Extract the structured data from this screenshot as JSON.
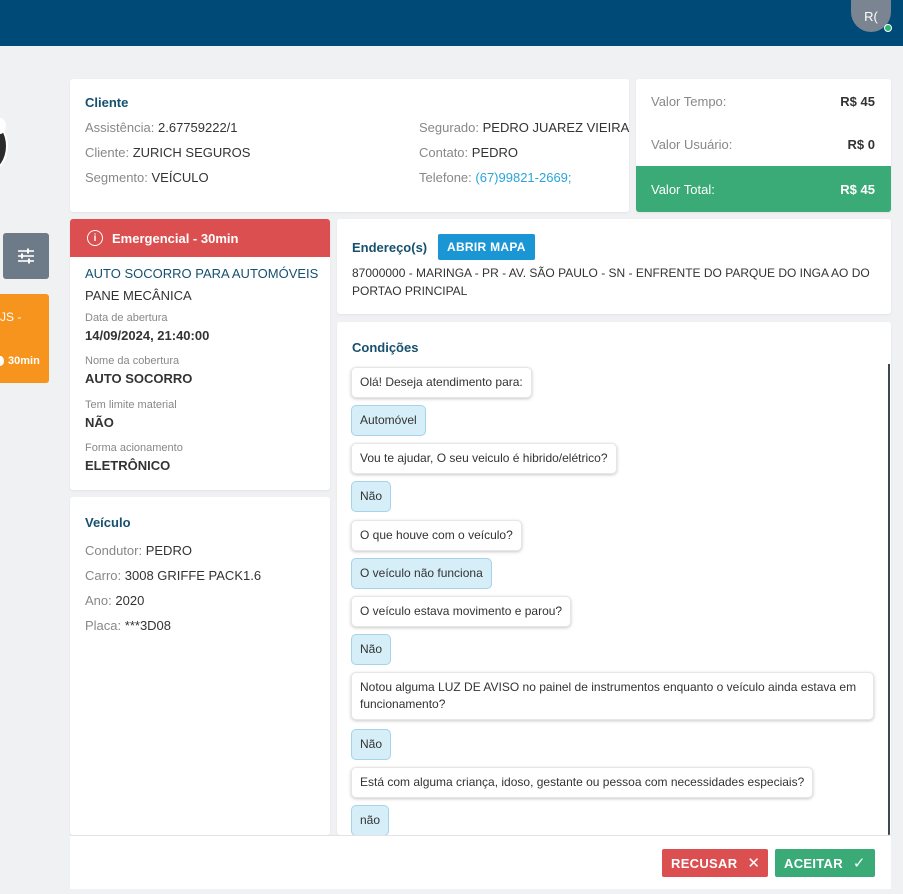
{
  "header": {
    "avatar_initials": "R("
  },
  "sidebar": {
    "orange_card_label": "JS -",
    "orange_card_timer": "30min",
    "filter_icon": "sliders-icon"
  },
  "client": {
    "title": "Cliente",
    "assistencia_label": "Assistência:",
    "assistencia_value": "2.67759222/1",
    "cliente_label": "Cliente:",
    "cliente_value": "ZURICH SEGUROS",
    "segmento_label": "Segmento:",
    "segmento_value": "VEÍCULO",
    "segurado_label": "Segurado:",
    "segurado_value": "PEDRO JUAREZ VIEIRA",
    "contato_label": "Contato:",
    "contato_value": "PEDRO",
    "telefone_label": "Telefone:",
    "telefone_value": "(67)99821-2669;"
  },
  "values": {
    "tempo_label": "Valor Tempo:",
    "tempo_value": "R$ 45",
    "usuario_label": "Valor Usuário:",
    "usuario_value": "R$ 0",
    "total_label": "Valor Total:",
    "total_value": "R$ 45"
  },
  "service": {
    "emergency_label": "Emergencial - 30min",
    "title": "AUTO SOCORRO PARA AUTOMÓVEIS",
    "subtitle": "PANE MECÂNICA",
    "data_abertura_label": "Data de abertura",
    "data_abertura_value": "14/09/2024, 21:40:00",
    "cobertura_label": "Nome da cobertura",
    "cobertura_value": "AUTO SOCORRO",
    "limite_label": "Tem limite material",
    "limite_value": "NÃO",
    "acionamento_label": "Forma acionamento",
    "acionamento_value": "ELETRÔNICO"
  },
  "vehicle": {
    "title": "Veículo",
    "condutor_label": "Condutor:",
    "condutor_value": "PEDRO",
    "carro_label": "Carro:",
    "carro_value": "3008 GRIFFE PACK1.6",
    "ano_label": "Ano:",
    "ano_value": "2020",
    "placa_label": "Placa:",
    "placa_value": "***3D08"
  },
  "address": {
    "title": "Endereço(s)",
    "map_button": "ABRIR MAPA",
    "text": "87000000 - MARINGA - PR - AV. SÃO PAULO - SN - ENFRENTE DO PARQUE DO INGA AO DO PORTAO PRINCIPAL"
  },
  "conditions": {
    "title": "Condições",
    "items": [
      {
        "type": "q",
        "text": "Olá! Deseja atendimento para:"
      },
      {
        "type": "a",
        "text": "Automóvel"
      },
      {
        "type": "q",
        "text": "Vou te ajudar, O seu veiculo é hibrido/elétrico?"
      },
      {
        "type": "a",
        "text": "Não"
      },
      {
        "type": "q",
        "text": "O que houve com o veículo?"
      },
      {
        "type": "a",
        "text": "O veículo não funciona"
      },
      {
        "type": "q",
        "text": "O veículo estava movimento e parou?"
      },
      {
        "type": "a",
        "text": "Não"
      },
      {
        "type": "q",
        "text": "Notou alguma LUZ DE AVISO no painel de instrumentos enquanto o veículo ainda estava em funcionamento?"
      },
      {
        "type": "a",
        "text": "Não"
      },
      {
        "type": "q",
        "text": "Está com alguma criança, idoso, gestante ou pessoa com necessidades especiais?"
      },
      {
        "type": "a",
        "text": "não"
      }
    ]
  },
  "footer": {
    "refuse_label": "RECUSAR",
    "accept_label": "ACEITAR"
  },
  "colors": {
    "topbar": "#004a77",
    "emergency": "#dc4f50",
    "total": "#3aaa77",
    "accent": "#1b96d5",
    "warning": "#f7941d"
  }
}
